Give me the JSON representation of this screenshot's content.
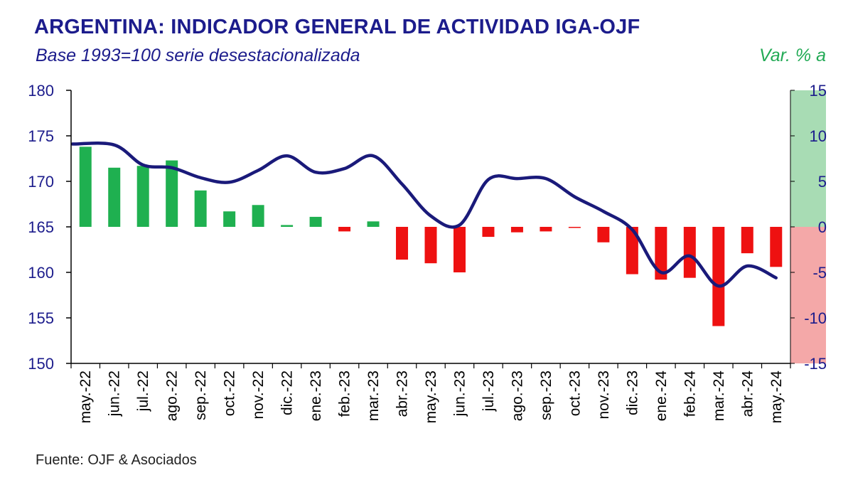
{
  "title": "ARGENTINA: INDICADOR GENERAL DE ACTIVIDAD IGA-OJF",
  "subtitle": "Base 1993=100 serie desestacionalizada",
  "right_axis_title": "Var. % a",
  "source": "Fuente: OJF & Asociados",
  "colors": {
    "title": "#1c1c8c",
    "line": "#1a1a7a",
    "bar_positive": "#1fb050",
    "bar_negative": "#ee1111",
    "band_positive": "#a8dcb4",
    "band_negative": "#f4a8a8",
    "right_axis_title": "#22aa55",
    "axis_text": "#1c1c8c"
  },
  "chart_data": {
    "type": "bar+line",
    "categories": [
      "may.-22",
      "jun.-22",
      "jul.-22",
      "ago.-22",
      "sep.-22",
      "oct.-22",
      "nov.-22",
      "dic.-22",
      "ene.-23",
      "feb.-23",
      "mar.-23",
      "abr.-23",
      "may.-23",
      "jun.-23",
      "jul.-23",
      "ago.-23",
      "sep.-23",
      "oct.-23",
      "nov.-23",
      "dic.-23",
      "ene.-24",
      "feb.-24",
      "mar.-24",
      "abr.-24",
      "may.-24"
    ],
    "series": [
      {
        "type": "line",
        "axis": "left",
        "values": [
          174.1,
          174.0,
          171.8,
          171.5,
          170.4,
          169.9,
          171.2,
          172.8,
          171.0,
          171.4,
          172.8,
          169.7,
          166.2,
          165.2,
          170.2,
          170.3,
          170.3,
          168.3,
          166.7,
          164.7,
          160.0,
          161.8,
          158.5,
          160.7,
          159.4
        ]
      },
      {
        "type": "bar",
        "axis": "right",
        "values": [
          8.8,
          6.5,
          6.7,
          7.3,
          4.0,
          1.7,
          2.4,
          0.2,
          1.1,
          -0.5,
          0.6,
          -3.6,
          -4.0,
          -5.0,
          -1.1,
          -0.6,
          -0.5,
          -0.1,
          -1.7,
          -5.2,
          -5.8,
          -5.6,
          -10.9,
          -2.9,
          -4.4
        ]
      }
    ],
    "y_left": {
      "ylim": [
        150,
        180
      ],
      "ticks": [
        150,
        155,
        160,
        165,
        170,
        175,
        180
      ]
    },
    "y_right": {
      "ylim": [
        -15,
        15
      ],
      "ticks": [
        -15,
        -10,
        -5,
        0,
        5,
        10,
        15
      ]
    },
    "grid": false
  }
}
